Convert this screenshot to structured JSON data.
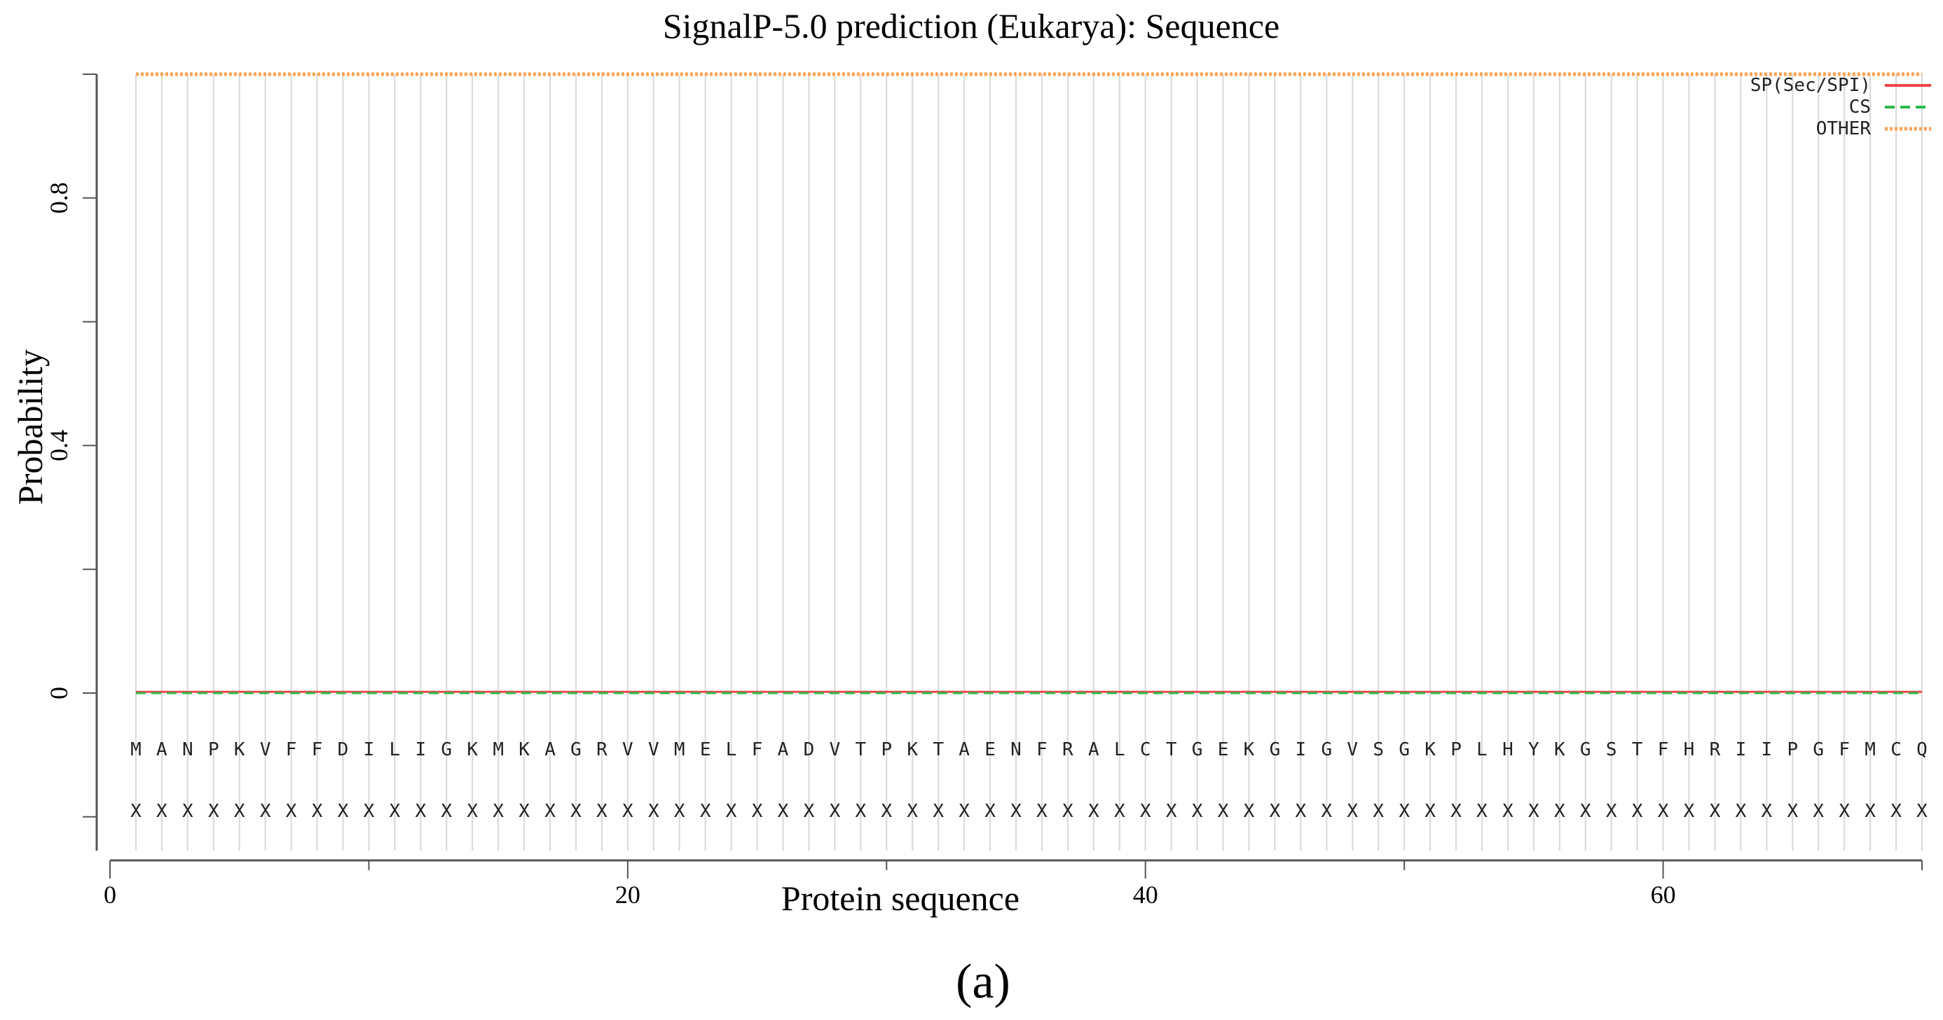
{
  "chart_data": {
    "type": "line",
    "title": "SignalP-5.0 prediction (Eukarya): Sequence",
    "xlabel": "Protein sequence",
    "ylabel": "Probability",
    "xlim": [
      0,
      70
    ],
    "ylim": [
      -0.2,
      1.0
    ],
    "x_ticks": [
      0,
      20,
      40,
      60
    ],
    "y_ticks": [
      0,
      0.4,
      0.8
    ],
    "grid": "vertical lines at each residue",
    "legend_position": "top-right",
    "sequence": [
      "M",
      "A",
      "N",
      "P",
      "K",
      "V",
      "F",
      "F",
      "D",
      "I",
      "L",
      "I",
      "G",
      "K",
      "M",
      "K",
      "A",
      "G",
      "R",
      "V",
      "V",
      "M",
      "E",
      "L",
      "F",
      "A",
      "D",
      "V",
      "T",
      "P",
      "K",
      "T",
      "A",
      "E",
      "N",
      "F",
      "R",
      "A",
      "L",
      "C",
      "T",
      "G",
      "E",
      "K",
      "G",
      "I",
      "G",
      "V",
      "S",
      "G",
      "K",
      "P",
      "L",
      "H",
      "Y",
      "K",
      "G",
      "S",
      "T",
      "F",
      "H",
      "R",
      "I",
      "I",
      "P",
      "G",
      "F",
      "M",
      "C",
      "Q"
    ],
    "annotation_row": "X",
    "series": [
      {
        "name": "SP(Sec/SPI)",
        "color": "#f0434a",
        "style": "solid",
        "value_all_positions": 0.002
      },
      {
        "name": "CS",
        "color": "#2db84a",
        "style": "dashed",
        "value_all_positions": 0.0
      },
      {
        "name": "OTHER",
        "color": "#ffa050",
        "style": "dotted",
        "value_all_positions": 1.0
      }
    ]
  },
  "caption": "(a)"
}
